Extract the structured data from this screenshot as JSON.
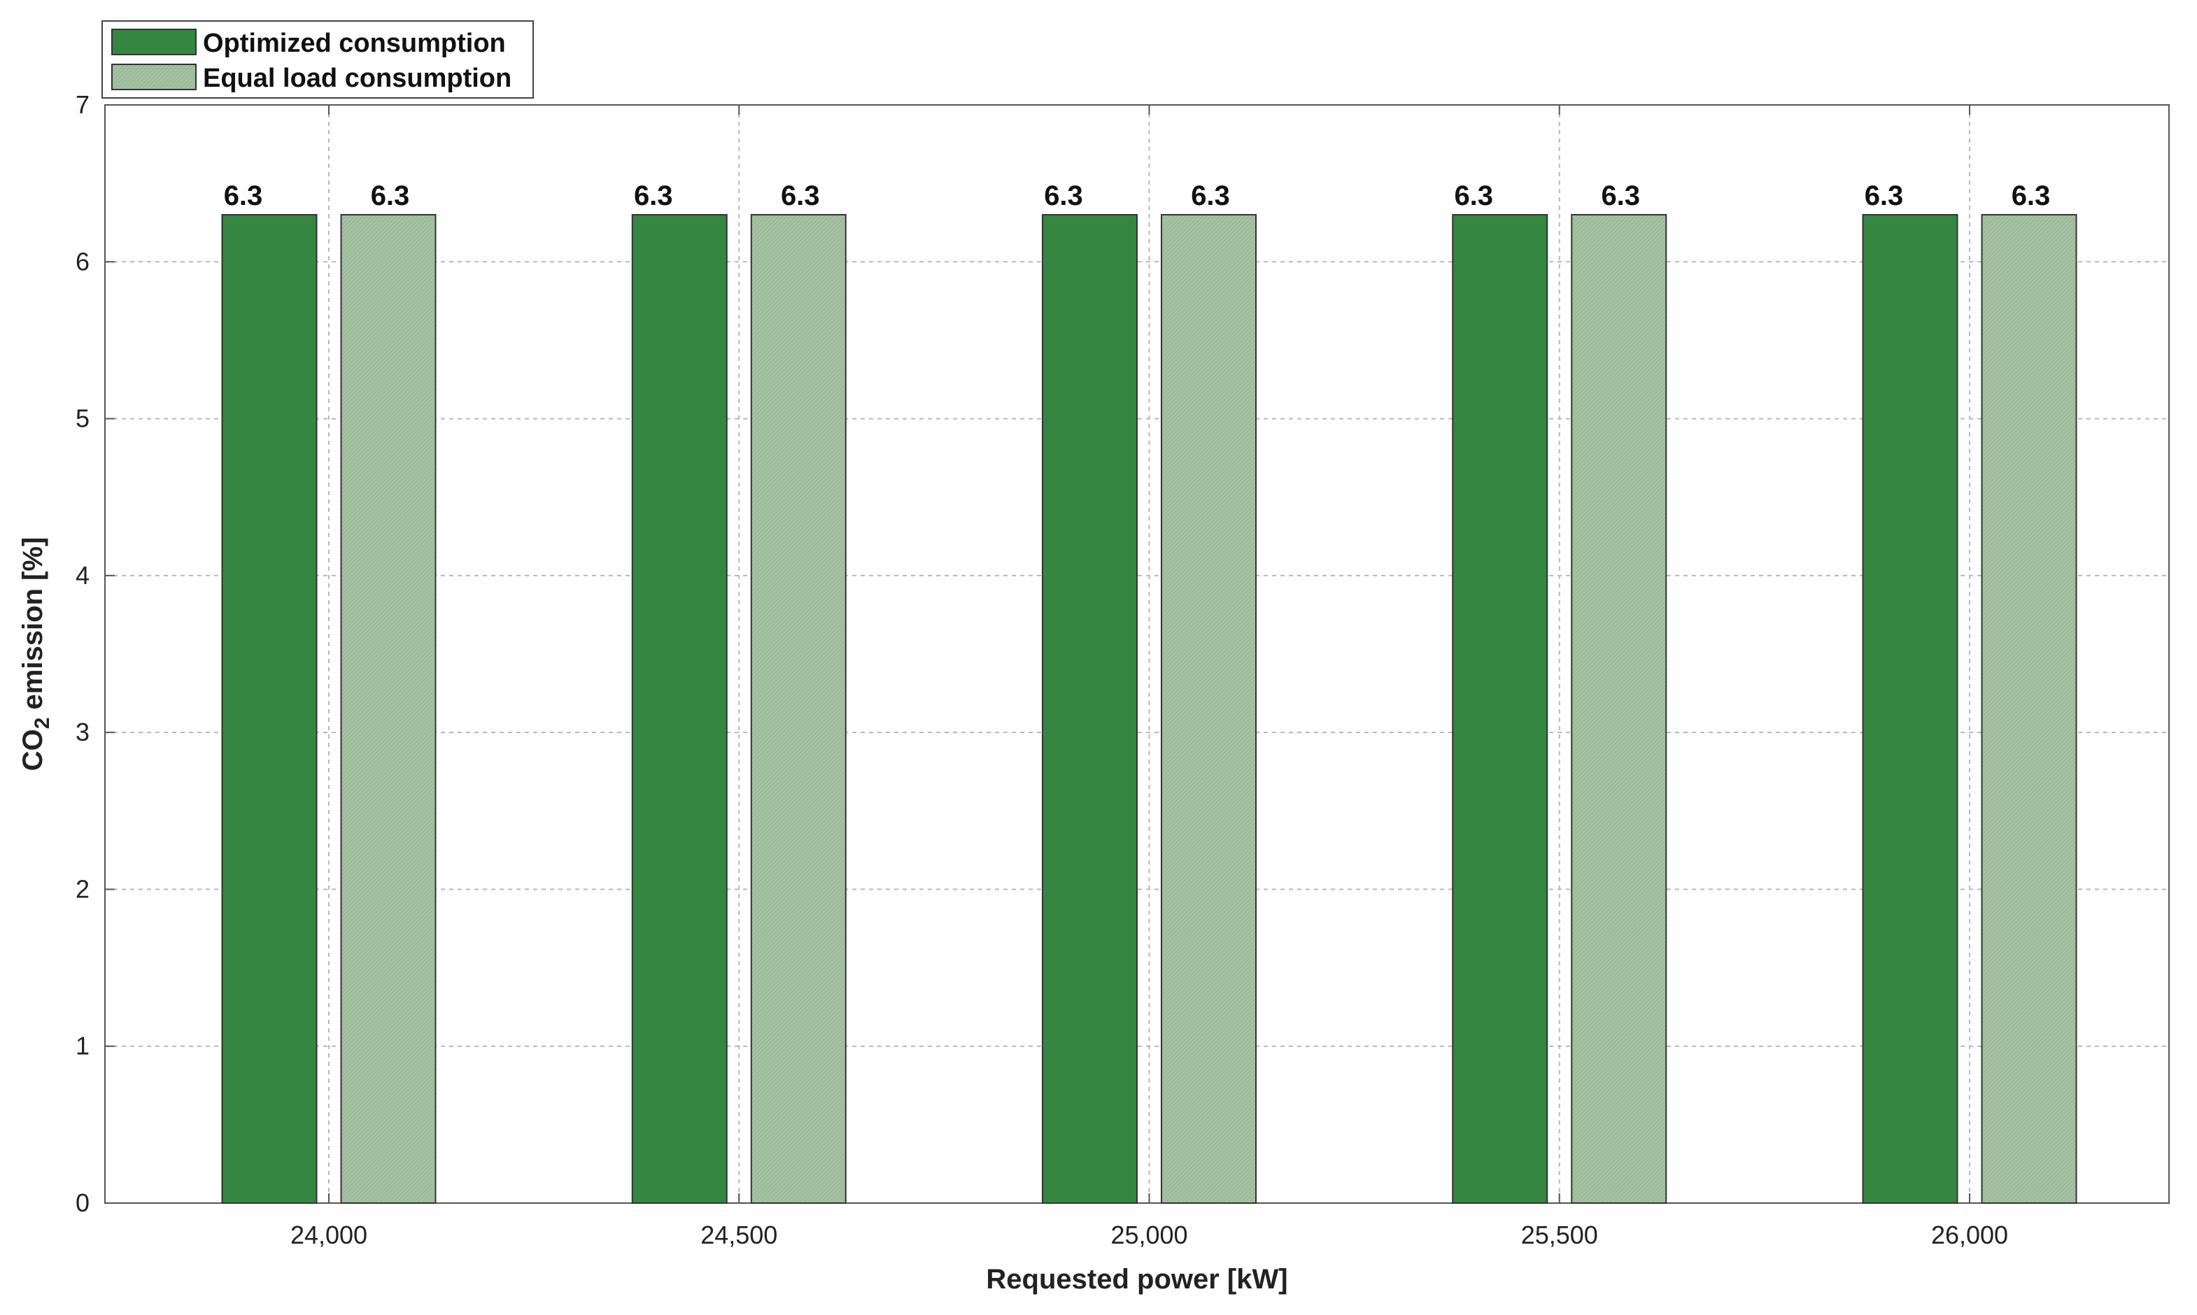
{
  "chart_data": {
    "type": "bar",
    "title": "",
    "xlabel": "Requested power [kW]",
    "ylabel_main": "CO",
    "ylabel_sub": "2",
    "ylabel_rest": " emission [%]",
    "categories": [
      "24,000",
      "24,500",
      "25,000",
      "25,500",
      "26,000"
    ],
    "series": [
      {
        "name": "Optimized consumption",
        "values": [
          6.3,
          6.3,
          6.3,
          6.3,
          6.3
        ],
        "color": "#358641"
      },
      {
        "name": "Equal load consumption",
        "values": [
          6.3,
          6.3,
          6.3,
          6.3,
          6.3
        ],
        "color": "#a4c1a2"
      }
    ],
    "ylim": [
      0,
      7
    ],
    "yticks": [
      0,
      1,
      2,
      3,
      4,
      5,
      6,
      7
    ],
    "grid": true,
    "legend_position": "top-left"
  }
}
